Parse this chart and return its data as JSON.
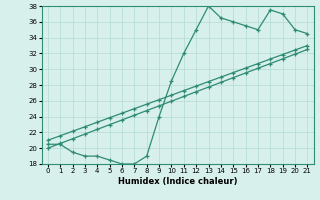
{
  "xlabel": "Humidex (Indice chaleur)",
  "line1_x": [
    0,
    1,
    2,
    3,
    4,
    5,
    6,
    7,
    8,
    9,
    10,
    11,
    12,
    13,
    14,
    15,
    16,
    17,
    18,
    19,
    20,
    21
  ],
  "line1_y": [
    20.5,
    20.5,
    19.5,
    19.0,
    19.0,
    18.5,
    18.0,
    18.0,
    19.0,
    24.0,
    28.5,
    32.0,
    35.0,
    38.0,
    36.5,
    36.0,
    35.5,
    35.0,
    37.5,
    37.0,
    35.0,
    34.5
  ],
  "line2_x": [
    0,
    1,
    2,
    3,
    4,
    5,
    6,
    7,
    8,
    9,
    10,
    11,
    12,
    13,
    14,
    15,
    16,
    17,
    18,
    19,
    20,
    21
  ],
  "line2_y": [
    21.0,
    21.57,
    22.14,
    22.71,
    23.29,
    23.86,
    24.43,
    25.0,
    25.57,
    26.14,
    26.71,
    27.29,
    27.86,
    28.43,
    29.0,
    29.57,
    30.14,
    30.71,
    31.29,
    31.86,
    32.43,
    33.0
  ],
  "line3_x": [
    0,
    1,
    2,
    3,
    4,
    5,
    6,
    7,
    8,
    9,
    10,
    11,
    12,
    13,
    14,
    15,
    16,
    17,
    18,
    19,
    20,
    21
  ],
  "line3_y": [
    20.0,
    20.595,
    21.19,
    21.786,
    22.381,
    22.976,
    23.571,
    24.167,
    24.762,
    25.357,
    25.952,
    26.548,
    27.143,
    27.738,
    28.333,
    28.929,
    29.524,
    30.119,
    30.714,
    31.31,
    31.905,
    32.5
  ],
  "line_color": "#2e8b74",
  "bg_color": "#d8f0ec",
  "grid_color": "#b8ddd8",
  "ylim": [
    18,
    38
  ],
  "xlim": [
    -0.5,
    21.5
  ],
  "yticks": [
    18,
    20,
    22,
    24,
    26,
    28,
    30,
    32,
    34,
    36,
    38
  ],
  "xticks": [
    0,
    1,
    2,
    3,
    4,
    5,
    6,
    7,
    8,
    9,
    10,
    11,
    12,
    13,
    14,
    15,
    16,
    17,
    18,
    19,
    20,
    21
  ],
  "marker": "+",
  "markersize": 3.5,
  "linewidth": 0.9,
  "tick_fontsize": 5.0,
  "xlabel_fontsize": 6.0
}
